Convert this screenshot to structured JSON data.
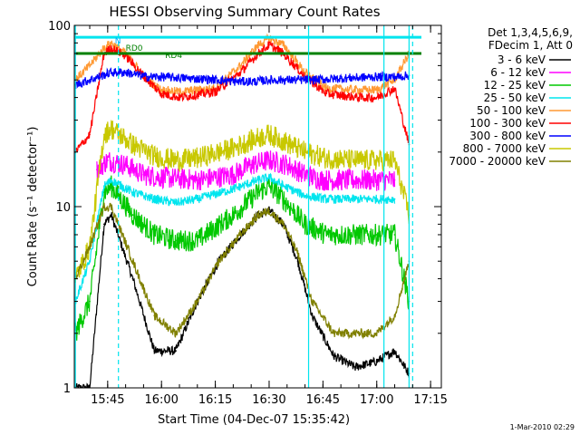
{
  "chart_data": {
    "type": "line",
    "title": "HESSI Observing Summary Count Rates",
    "xlabel": "Start Time (04-Dec-07 15:35:42)",
    "ylabel": "Count Rate (s⁻¹ detector⁻¹)",
    "y_scale": "log",
    "xlim": [
      "15:35:42",
      "17:18:00"
    ],
    "ylim": [
      1,
      100
    ],
    "x_ticks": [
      "15:45",
      "16:00",
      "16:15",
      "16:30",
      "16:45",
      "17:00",
      "17:15"
    ],
    "y_ticks": [
      "1",
      "10",
      "100"
    ],
    "legend_header": [
      "Det 1,3,4,5,6,9,",
      "FDecim 1, Att 0"
    ],
    "legend_position": "right",
    "annotations": [
      {
        "text": "N",
        "x": "15:47",
        "color": "#00aaff"
      },
      {
        "text": "RD0",
        "x": "15:50",
        "color": "#008000"
      },
      {
        "text": "RD4",
        "x": "16:01",
        "color": "#008000"
      }
    ],
    "vertical_markers": {
      "solid": [
        "15:36",
        "16:41",
        "17:02",
        "17:09"
      ],
      "dashed": [
        "15:48",
        "17:10"
      ],
      "color": "#00e5ee"
    },
    "reference_lines": [
      {
        "color": "#00e5ee",
        "value": 86
      },
      {
        "color": "#008000",
        "value": 70
      }
    ],
    "series": [
      {
        "name": "3 - 6 keV",
        "color": "#000000",
        "x": [
          "15:36",
          "15:40",
          "15:44",
          "15:46",
          "15:52",
          "15:58",
          "16:04",
          "16:10",
          "16:16",
          "16:22",
          "16:27",
          "16:30",
          "16:34",
          "16:38",
          "16:42",
          "16:48",
          "16:54",
          "17:00",
          "17:05",
          "17:09"
        ],
        "values": [
          1.0,
          1.0,
          8.0,
          9.0,
          4.0,
          1.6,
          1.6,
          3.0,
          5.0,
          7.0,
          9.0,
          9.5,
          8.0,
          5.0,
          2.5,
          1.5,
          1.3,
          1.4,
          1.6,
          1.2
        ]
      },
      {
        "name": "6 - 12 keV",
        "color": "#ff00ff",
        "x": [
          "15:42",
          "15:45",
          "15:50",
          "15:55",
          "16:00",
          "16:10",
          "16:20",
          "16:25",
          "16:30",
          "16:35",
          "16:40",
          "16:45",
          "16:55",
          "17:00",
          "17:05"
        ],
        "values": [
          16.0,
          18.0,
          17.0,
          15.0,
          14.5,
          14.0,
          15.0,
          17.0,
          18.0,
          17.0,
          15.0,
          14.0,
          14.0,
          14.0,
          14.0
        ]
      },
      {
        "name": "12 - 25 keV",
        "color": "#00c800",
        "x": [
          "15:36",
          "15:40",
          "15:44",
          "15:46",
          "15:52",
          "15:58",
          "16:04",
          "16:10",
          "16:20",
          "16:27",
          "16:30",
          "16:34",
          "16:40",
          "16:46",
          "16:54",
          "17:00",
          "17:05",
          "17:09"
        ],
        "values": [
          2.0,
          3.0,
          12.0,
          13.0,
          9.0,
          7.0,
          6.5,
          6.5,
          9.0,
          12.0,
          13.0,
          11.0,
          8.0,
          7.0,
          7.0,
          7.0,
          7.0,
          3.0
        ]
      },
      {
        "name": "25 - 50 keV",
        "color": "#00e5ee",
        "x": [
          "15:36",
          "15:40",
          "15:44",
          "15:46",
          "15:52",
          "15:58",
          "16:04",
          "16:10",
          "16:20",
          "16:27",
          "16:30",
          "16:34",
          "16:40",
          "16:46",
          "16:54",
          "17:00",
          "17:05"
        ],
        "values": [
          3.0,
          5.0,
          13.0,
          14.0,
          12.0,
          11.0,
          10.5,
          11.0,
          12.5,
          14.0,
          14.5,
          13.0,
          11.5,
          11.0,
          11.0,
          11.0,
          11.0
        ]
      },
      {
        "name": "50 - 100 keV",
        "color": "#ff9933",
        "x": [
          "15:36",
          "15:40",
          "15:44",
          "15:46",
          "15:50",
          "15:56",
          "16:00",
          "16:05",
          "16:15",
          "16:22",
          "16:27",
          "16:30",
          "16:34",
          "16:40",
          "16:46",
          "16:55",
          "17:00",
          "17:05",
          "17:09"
        ],
        "values": [
          50.0,
          60.0,
          75.0,
          80.0,
          70.0,
          50.0,
          44.0,
          43.0,
          45.0,
          60.0,
          78.0,
          85.0,
          78.0,
          55.0,
          45.0,
          44.0,
          44.0,
          50.0,
          70.0
        ]
      },
      {
        "name": "100 - 300 keV",
        "color": "#ff0000",
        "x": [
          "15:36",
          "15:40",
          "15:44",
          "15:46",
          "15:50",
          "15:56",
          "16:00",
          "16:05",
          "16:15",
          "16:22",
          "16:27",
          "16:30",
          "16:34",
          "16:40",
          "16:46",
          "16:55",
          "17:00",
          "17:05",
          "17:09"
        ],
        "values": [
          20.0,
          25.0,
          70.0,
          75.0,
          68.0,
          50.0,
          42.0,
          40.0,
          43.0,
          55.0,
          70.0,
          78.0,
          70.0,
          52.0,
          42.0,
          40.0,
          40.0,
          45.0,
          22.0
        ]
      },
      {
        "name": "300 - 800 keV",
        "color": "#0000ff",
        "x": [
          "15:36",
          "15:40",
          "15:46",
          "15:50",
          "15:56",
          "16:00",
          "16:08",
          "16:16",
          "16:20",
          "16:26",
          "16:30",
          "16:36",
          "16:42",
          "16:50",
          "17:00",
          "17:06",
          "17:09"
        ],
        "values": [
          47.0,
          50.0,
          55.0,
          55.0,
          52.0,
          52.0,
          51.0,
          50.0,
          49.0,
          49.0,
          50.0,
          50.0,
          50.0,
          51.0,
          52.0,
          52.0,
          53.0
        ]
      },
      {
        "name": "800 - 7000 keV",
        "color": "#c8c800",
        "x": [
          "15:36",
          "15:40",
          "15:44",
          "15:46",
          "15:52",
          "15:58",
          "16:04",
          "16:10",
          "16:20",
          "16:27",
          "16:30",
          "16:34",
          "16:40",
          "16:46",
          "16:54",
          "17:00",
          "17:05",
          "17:09"
        ],
        "values": [
          4.0,
          6.0,
          25.0,
          27.0,
          22.0,
          19.0,
          18.0,
          18.5,
          21.0,
          24.0,
          25.0,
          23.0,
          20.0,
          18.5,
          18.0,
          18.0,
          18.0,
          9.0
        ]
      },
      {
        "name": "7000 - 20000 keV",
        "color": "#808000",
        "x": [
          "15:36",
          "15:40",
          "15:44",
          "15:46",
          "15:52",
          "15:58",
          "16:04",
          "16:10",
          "16:16",
          "16:22",
          "16:27",
          "16:30",
          "16:34",
          "16:38",
          "16:42",
          "16:48",
          "16:54",
          "17:00",
          "17:05",
          "17:09"
        ],
        "values": [
          4.0,
          6.0,
          10.0,
          10.0,
          5.0,
          2.5,
          2.0,
          3.0,
          5.0,
          7.0,
          9.0,
          9.5,
          8.0,
          5.5,
          3.0,
          2.0,
          2.0,
          2.0,
          2.5,
          5.0
        ]
      }
    ]
  },
  "footer": {
    "timestamp": "1-Mar-2010 02:29"
  }
}
